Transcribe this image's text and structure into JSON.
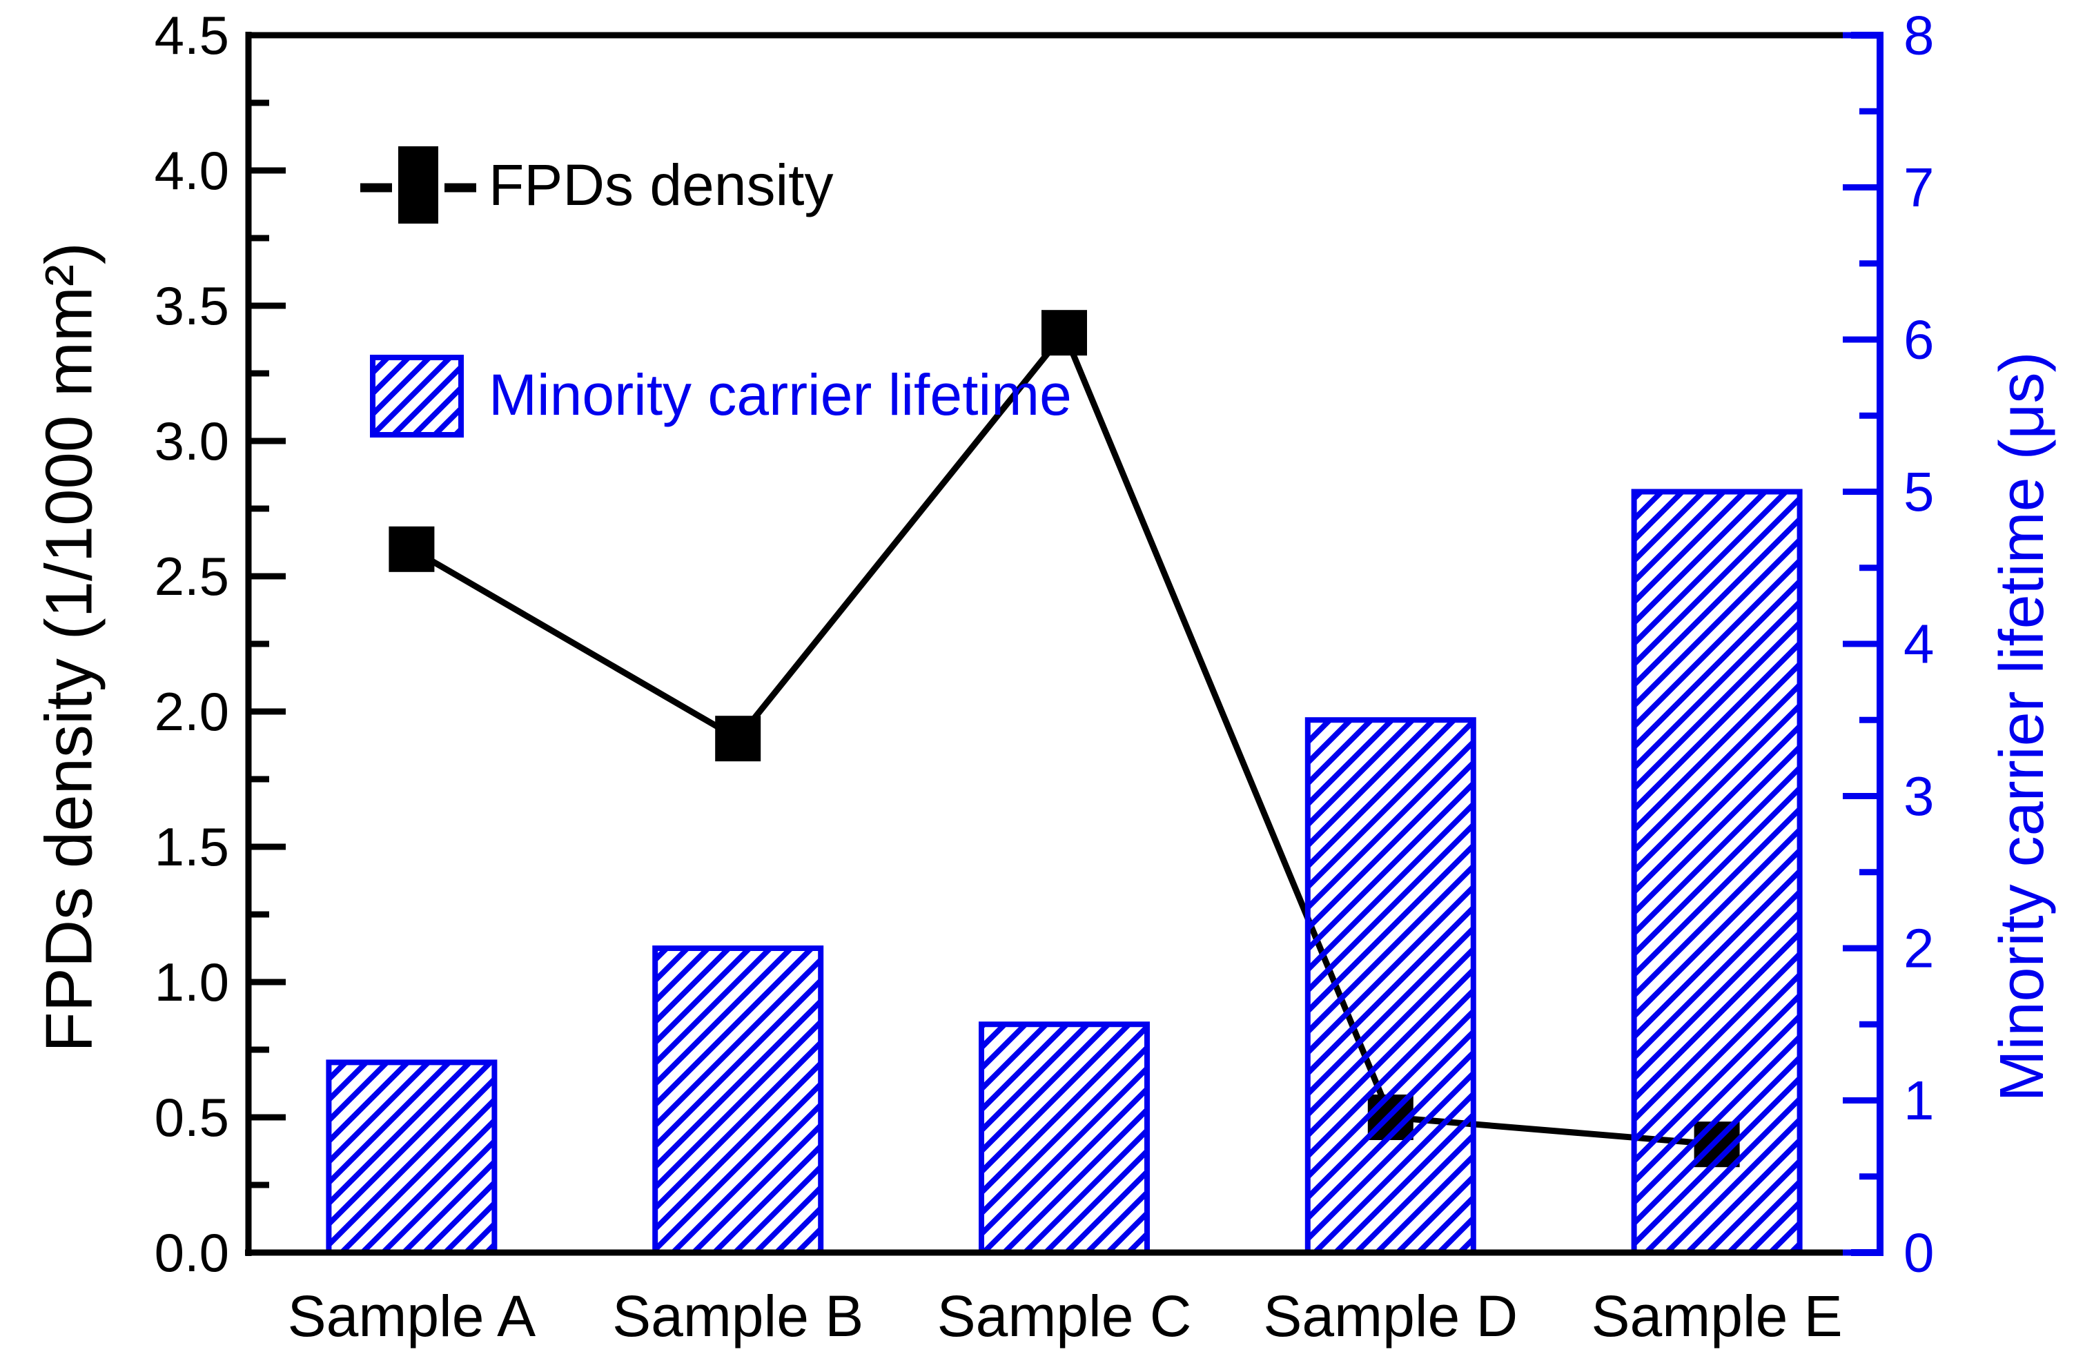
{
  "chart_data": {
    "type": "combo",
    "background": "#ffffff",
    "grid": false,
    "categories": [
      "Sample A",
      "Sample B",
      "Sample C",
      "Sample D",
      "Sample E"
    ],
    "series": [
      {
        "name": "FPDs density",
        "type": "line",
        "axis": "left",
        "color": "#000000",
        "marker": "filled-square",
        "values": [
          2.6,
          1.9,
          3.4,
          0.5,
          0.4
        ]
      },
      {
        "name": "Minority carrier lifetime",
        "type": "bar",
        "axis": "right",
        "color": "#0000ee",
        "fill": "diagonal-hatch",
        "values": [
          1.25,
          2.0,
          1.5,
          3.5,
          5.0
        ]
      }
    ],
    "left_axis": {
      "label": "FPDs density (1/1000 mm²)",
      "color": "#000000",
      "min": 0,
      "max": 4.5,
      "major_step": 0.5,
      "minor_step": 0.25,
      "tick_labels": [
        "0.0",
        "0.5",
        "1.0",
        "1.5",
        "2.0",
        "2.5",
        "3.0",
        "3.5",
        "4.0",
        "4.5"
      ]
    },
    "right_axis": {
      "label": "Minority carrier lifetime (μs)",
      "color": "#0000ee",
      "min": 0,
      "max": 8,
      "major_step": 1,
      "minor_step": 0.5,
      "tick_labels": [
        "0",
        "1",
        "2",
        "3",
        "4",
        "5",
        "6",
        "7",
        "8"
      ]
    },
    "x_axis": {
      "tick_labels": [
        "Sample A",
        "Sample B",
        "Sample C",
        "Sample D",
        "Sample E"
      ]
    },
    "legend": {
      "position": "top-left-inside",
      "entries": [
        {
          "label": "FPDs density",
          "swatch": "dash-square-dash",
          "color": "#000000"
        },
        {
          "label": "Minority carrier lifetime",
          "swatch": "hatched-box",
          "color": "#0000ee"
        }
      ]
    }
  }
}
